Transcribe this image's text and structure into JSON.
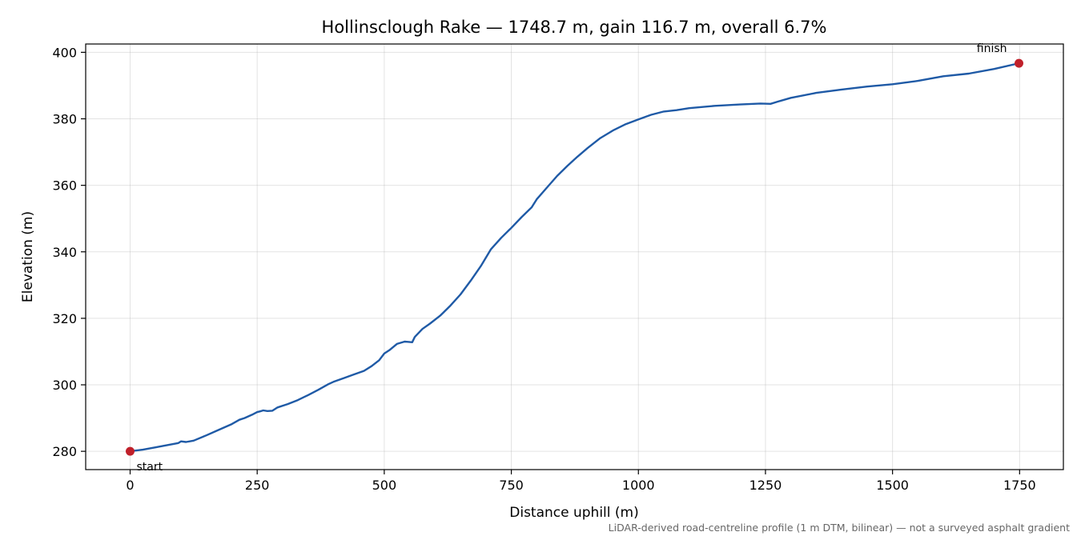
{
  "chart_data": {
    "type": "line",
    "title": "Hollinsclough Rake — 1748.7 m, gain 116.7 m, overall 6.7%",
    "xlabel": "Distance uphill (m)",
    "ylabel": "Elevation (m)",
    "xlim": [
      -87,
      1748.7
    ],
    "ylim": [
      274.5,
      402.5
    ],
    "x_ticks": [
      0,
      250,
      500,
      750,
      1000,
      1250,
      1500,
      1750
    ],
    "y_ticks": [
      280,
      300,
      320,
      340,
      360,
      380,
      400
    ],
    "grid": true,
    "line_color": "#1f5aa6",
    "marker_color": "#c0202a",
    "series": [
      {
        "x": [
          0,
          25,
          50,
          75,
          95,
          100,
          110,
          125,
          150,
          175,
          200,
          215,
          225,
          240,
          250,
          255,
          262,
          270,
          280,
          290,
          310,
          330,
          350,
          370,
          390,
          400,
          420,
          440,
          460,
          475,
          490,
          500,
          510,
          525,
          540,
          555,
          560,
          575,
          590,
          610,
          630,
          650,
          670,
          690,
          710,
          730,
          750,
          770,
          790,
          800,
          820,
          840,
          860,
          880,
          900,
          925,
          950,
          975,
          1000,
          1025,
          1050,
          1075,
          1100,
          1150,
          1200,
          1240,
          1260,
          1275,
          1300,
          1350,
          1400,
          1450,
          1500,
          1550,
          1600,
          1650,
          1700,
          1748.7
        ],
        "y": [
          280.0,
          280.5,
          281.2,
          281.9,
          282.5,
          283.0,
          282.8,
          283.2,
          284.8,
          286.5,
          288.2,
          289.5,
          290.0,
          291.0,
          291.8,
          292.0,
          292.3,
          292.1,
          292.2,
          293.2,
          294.2,
          295.4,
          296.9,
          298.5,
          300.2,
          300.9,
          302.0,
          303.1,
          304.2,
          305.6,
          307.4,
          309.4,
          310.4,
          312.3,
          313.0,
          312.8,
          314.4,
          316.8,
          318.4,
          320.8,
          323.8,
          327.2,
          331.3,
          335.7,
          340.8,
          344.2,
          347.2,
          350.4,
          353.4,
          355.8,
          359.3,
          362.8,
          365.8,
          368.6,
          371.2,
          374.2,
          376.5,
          378.4,
          379.8,
          381.2,
          382.2,
          382.6,
          383.2,
          383.9,
          384.3,
          384.6,
          384.5,
          385.2,
          386.3,
          387.8,
          388.8,
          389.7,
          390.4,
          391.4,
          392.8,
          393.6,
          395.0,
          396.7
        ]
      }
    ],
    "annotations": [
      {
        "text": "start",
        "x": 0,
        "y": 280.0
      },
      {
        "text": "finish",
        "x": 1748.7,
        "y": 396.7
      }
    ],
    "footnote": "LiDAR-derived road-centreline profile (1 m DTM, bilinear) — not a surveyed asphalt gradient"
  }
}
